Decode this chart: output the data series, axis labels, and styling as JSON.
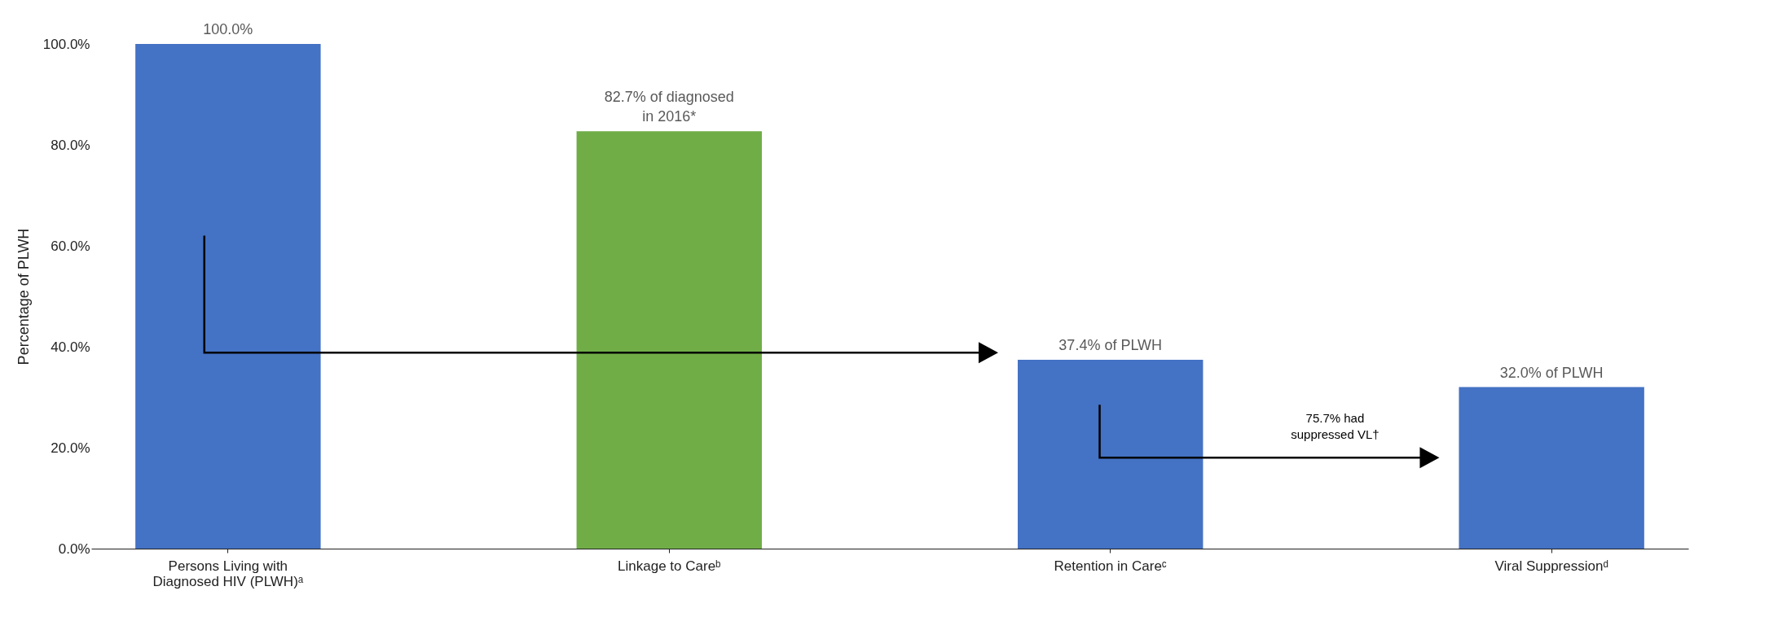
{
  "chart_data": {
    "type": "bar",
    "ylabel": "Percentage of PLWH",
    "categories": [
      "Persons Living with Diagnosed HIV (PLWH)ᵃ",
      "Linkage to Careᵇ",
      "Retention in Careᶜ",
      "Viral Suppressionᵈ"
    ],
    "values": [
      100.0,
      82.7,
      37.4,
      32.0
    ],
    "colors": [
      "#4472c4",
      "#70ad47",
      "#4472c4",
      "#4472c4"
    ],
    "value_labels": [
      "100.0%",
      "82.7% of diagnosed in 2016*",
      "37.4% of PLWH",
      "32.0% of PLWH"
    ],
    "ylim": [
      0,
      100
    ],
    "yticks": [
      {
        "value": 0,
        "label": "0.0%"
      },
      {
        "value": 20,
        "label": "20.0%"
      },
      {
        "value": 40,
        "label": "40.0%"
      },
      {
        "value": 60,
        "label": "60.0%"
      },
      {
        "value": 80,
        "label": "80.0%"
      },
      {
        "value": 100,
        "label": "100.0%"
      }
    ],
    "annotations": [
      "75.7% had suppressed VL†"
    ],
    "grid": false
  }
}
